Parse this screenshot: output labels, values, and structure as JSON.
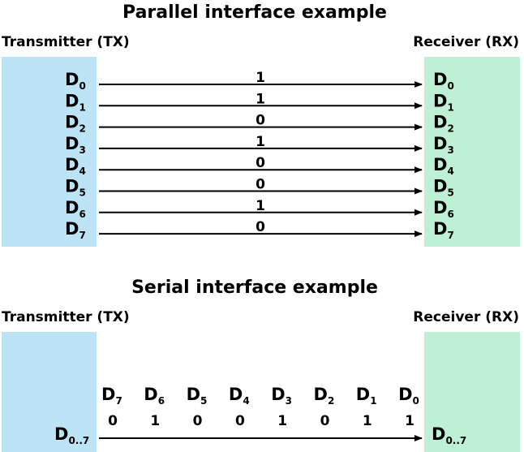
{
  "parallel": {
    "title": "Parallel interface example",
    "tx_label": "Transmitter (TX)",
    "rx_label": "Receiver (RX)",
    "lines": [
      {
        "name": "D",
        "sub": "0",
        "bit": "1"
      },
      {
        "name": "D",
        "sub": "1",
        "bit": "1"
      },
      {
        "name": "D",
        "sub": "2",
        "bit": "0"
      },
      {
        "name": "D",
        "sub": "3",
        "bit": "1"
      },
      {
        "name": "D",
        "sub": "4",
        "bit": "0"
      },
      {
        "name": "D",
        "sub": "5",
        "bit": "0"
      },
      {
        "name": "D",
        "sub": "6",
        "bit": "1"
      },
      {
        "name": "D",
        "sub": "7",
        "bit": "0"
      }
    ]
  },
  "serial": {
    "title": "Serial interface example",
    "tx_label": "Transmitter (TX)",
    "rx_label": "Receiver (RX)",
    "tx_signal": {
      "name": "D",
      "sub": "0..7"
    },
    "rx_signal": {
      "name": "D",
      "sub": "0..7"
    },
    "bits": [
      {
        "name": "D",
        "sub": "7",
        "bit": "0"
      },
      {
        "name": "D",
        "sub": "6",
        "bit": "1"
      },
      {
        "name": "D",
        "sub": "5",
        "bit": "0"
      },
      {
        "name": "D",
        "sub": "4",
        "bit": "0"
      },
      {
        "name": "D",
        "sub": "3",
        "bit": "1"
      },
      {
        "name": "D",
        "sub": "2",
        "bit": "0"
      },
      {
        "name": "D",
        "sub": "1",
        "bit": "1"
      },
      {
        "name": "D",
        "sub": "0",
        "bit": "1"
      }
    ]
  },
  "colors": {
    "tx_fill": "#bde4f6",
    "rx_fill": "#bdf0d4"
  }
}
